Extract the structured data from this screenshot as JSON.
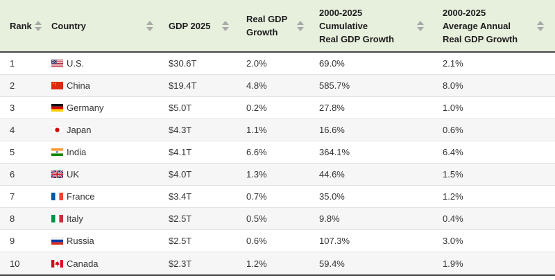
{
  "chart_data": {
    "type": "table",
    "columns": [
      {
        "key": "rank",
        "label": "Rank",
        "sortable": true
      },
      {
        "key": "country",
        "label": "Country",
        "sortable": true
      },
      {
        "key": "gdp",
        "label": "GDP 2025",
        "sortable": true
      },
      {
        "key": "growth",
        "label": "Real GDP\nGrowth",
        "sortable": true
      },
      {
        "key": "cumulative",
        "label": "2000-2025\nCumulative\nReal GDP Growth",
        "sortable": true
      },
      {
        "key": "average",
        "label": "2000-2025\nAverage Annual\nReal GDP Growth",
        "sortable": true
      }
    ],
    "rows": [
      {
        "rank": "1",
        "flag": "us",
        "country": "U.S.",
        "gdp": "$30.6T",
        "growth": "2.0%",
        "cumulative": "69.0%",
        "average": "2.1%"
      },
      {
        "rank": "2",
        "flag": "cn",
        "country": "China",
        "gdp": "$19.4T",
        "growth": "4.8%",
        "cumulative": "585.7%",
        "average": "8.0%"
      },
      {
        "rank": "3",
        "flag": "de",
        "country": "Germany",
        "gdp": "$5.0T",
        "growth": "0.2%",
        "cumulative": "27.8%",
        "average": "1.0%"
      },
      {
        "rank": "4",
        "flag": "jp",
        "country": "Japan",
        "gdp": "$4.3T",
        "growth": "1.1%",
        "cumulative": "16.6%",
        "average": "0.6%"
      },
      {
        "rank": "5",
        "flag": "in",
        "country": "India",
        "gdp": "$4.1T",
        "growth": "6.6%",
        "cumulative": "364.1%",
        "average": "6.4%"
      },
      {
        "rank": "6",
        "flag": "gb",
        "country": "UK",
        "gdp": "$4.0T",
        "growth": "1.3%",
        "cumulative": "44.6%",
        "average": "1.5%"
      },
      {
        "rank": "7",
        "flag": "fr",
        "country": "France",
        "gdp": "$3.4T",
        "growth": "0.7%",
        "cumulative": "35.0%",
        "average": "1.2%"
      },
      {
        "rank": "8",
        "flag": "it",
        "country": "Italy",
        "gdp": "$2.5T",
        "growth": "0.5%",
        "cumulative": "9.8%",
        "average": "0.4%"
      },
      {
        "rank": "9",
        "flag": "ru",
        "country": "Russia",
        "gdp": "$2.5T",
        "growth": "0.6%",
        "cumulative": "107.3%",
        "average": "3.0%"
      },
      {
        "rank": "10",
        "flag": "ca",
        "country": "Canada",
        "gdp": "$2.3T",
        "growth": "1.2%",
        "cumulative": "59.4%",
        "average": "1.9%"
      }
    ],
    "layout_hints": {
      "sort_icon": "up-down-triangles",
      "zebra_striping": true
    }
  },
  "colors": {
    "header_bg": "#e7efdd",
    "header_text": "#1d1d1d",
    "sort_arrow": "#a9a9a9",
    "row_bg_odd": "#ffffff",
    "row_bg_even": "#f6f6f6",
    "row_divider": "#e2e2e2",
    "table_frame": "#474747",
    "body_text": "#333333"
  }
}
